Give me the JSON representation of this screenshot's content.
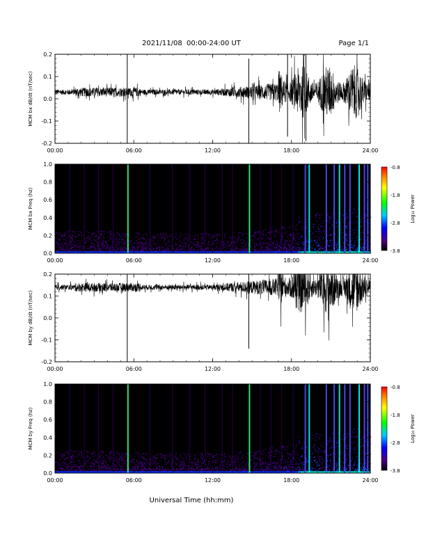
{
  "header": {
    "title": "2021/11/08  00:00-24:00 UT",
    "page": "Page 1/1"
  },
  "xaxis_label": "Universal Time (hh:mm)",
  "chart_data": [
    {
      "type": "line",
      "ylabel": "MCM bx dB/dt (nT/sec)",
      "xlim": [
        0,
        24
      ],
      "ylim": [
        -0.2,
        0.2
      ],
      "yticks": [
        "0.2",
        "0.1",
        "0.0",
        "-0.1",
        "-0.2"
      ],
      "xticks": [
        "00:00",
        "06:00",
        "12:00",
        "18:00",
        "24:00"
      ],
      "baseline": 0.03,
      "spikes": [
        {
          "x": 5.5,
          "y_min": -0.2,
          "y_max": 0.2
        },
        {
          "x": 14.75,
          "y_min": -0.2,
          "y_max": 0.18
        },
        {
          "x": 17.7,
          "y_min": -0.17,
          "y_max": 0.2
        },
        {
          "x": 19.1,
          "y_min": -0.19,
          "y_max": 0.2
        }
      ]
    },
    {
      "type": "heatmap",
      "ylabel": "MCM bx Freq (hz)",
      "xlim": [
        0,
        24
      ],
      "ylim": [
        0,
        1.0
      ],
      "yticks": [
        "1.0",
        "0.8",
        "0.6",
        "0.4",
        "0.2",
        "0.0"
      ],
      "xticks": [
        "00:00",
        "06:00",
        "12:00",
        "18:00",
        "24:00"
      ],
      "colorbar": {
        "label": "Log₁₀ Power",
        "ticks": [
          "-0.8",
          "-1.8",
          "-2.8",
          "-3.8"
        ]
      }
    },
    {
      "type": "line",
      "ylabel": "MCM by dB/dt (nT/sec)",
      "xlim": [
        0,
        24
      ],
      "ylim": [
        -0.2,
        0.2
      ],
      "yticks": [
        "0.2",
        "0.1",
        "0.0",
        "-0.1",
        "-0.2"
      ],
      "xticks": [
        "00:00",
        "06:00",
        "12:00",
        "18:00",
        "24:00"
      ],
      "baseline": 0.14,
      "spikes": [
        {
          "x": 5.5,
          "y_min": -0.2,
          "y_max": 0.2
        },
        {
          "x": 14.75,
          "y_min": -0.14,
          "y_max": 0.2
        }
      ]
    },
    {
      "type": "heatmap",
      "ylabel": "MCM by Freq (hz)",
      "xlim": [
        0,
        24
      ],
      "ylim": [
        0,
        1.0
      ],
      "yticks": [
        "1.0",
        "0.8",
        "0.6",
        "0.4",
        "0.2",
        "0.0"
      ],
      "xticks": [
        "00:00",
        "06:00",
        "12:00",
        "18:00",
        "24:00"
      ],
      "colorbar": {
        "label": "Log₁₀ Power",
        "ticks": [
          "-0.8",
          "-1.8",
          "-2.8",
          "-3.8"
        ]
      }
    }
  ]
}
